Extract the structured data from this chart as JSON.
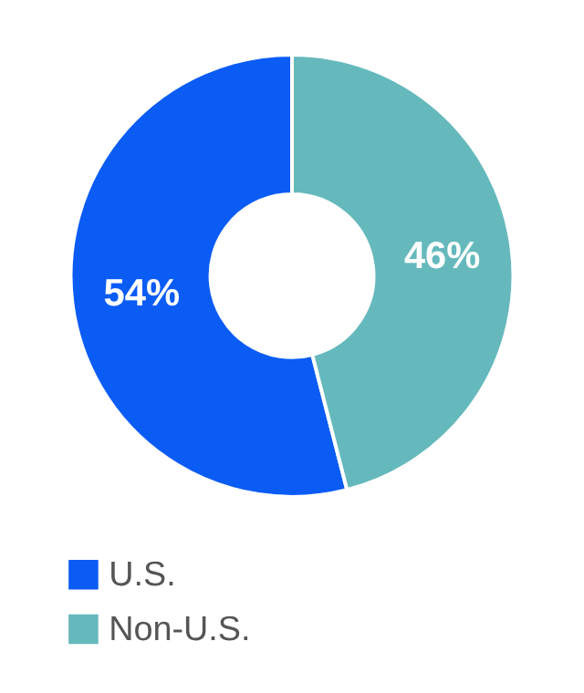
{
  "chart_data": {
    "type": "donut",
    "categories": [
      "U.S.",
      "Non-U.S."
    ],
    "values": [
      54,
      46
    ],
    "colors": [
      "#0b5cf5",
      "#65b9bc"
    ],
    "value_labels": [
      "54%",
      "46%"
    ],
    "legend": "bottom"
  }
}
